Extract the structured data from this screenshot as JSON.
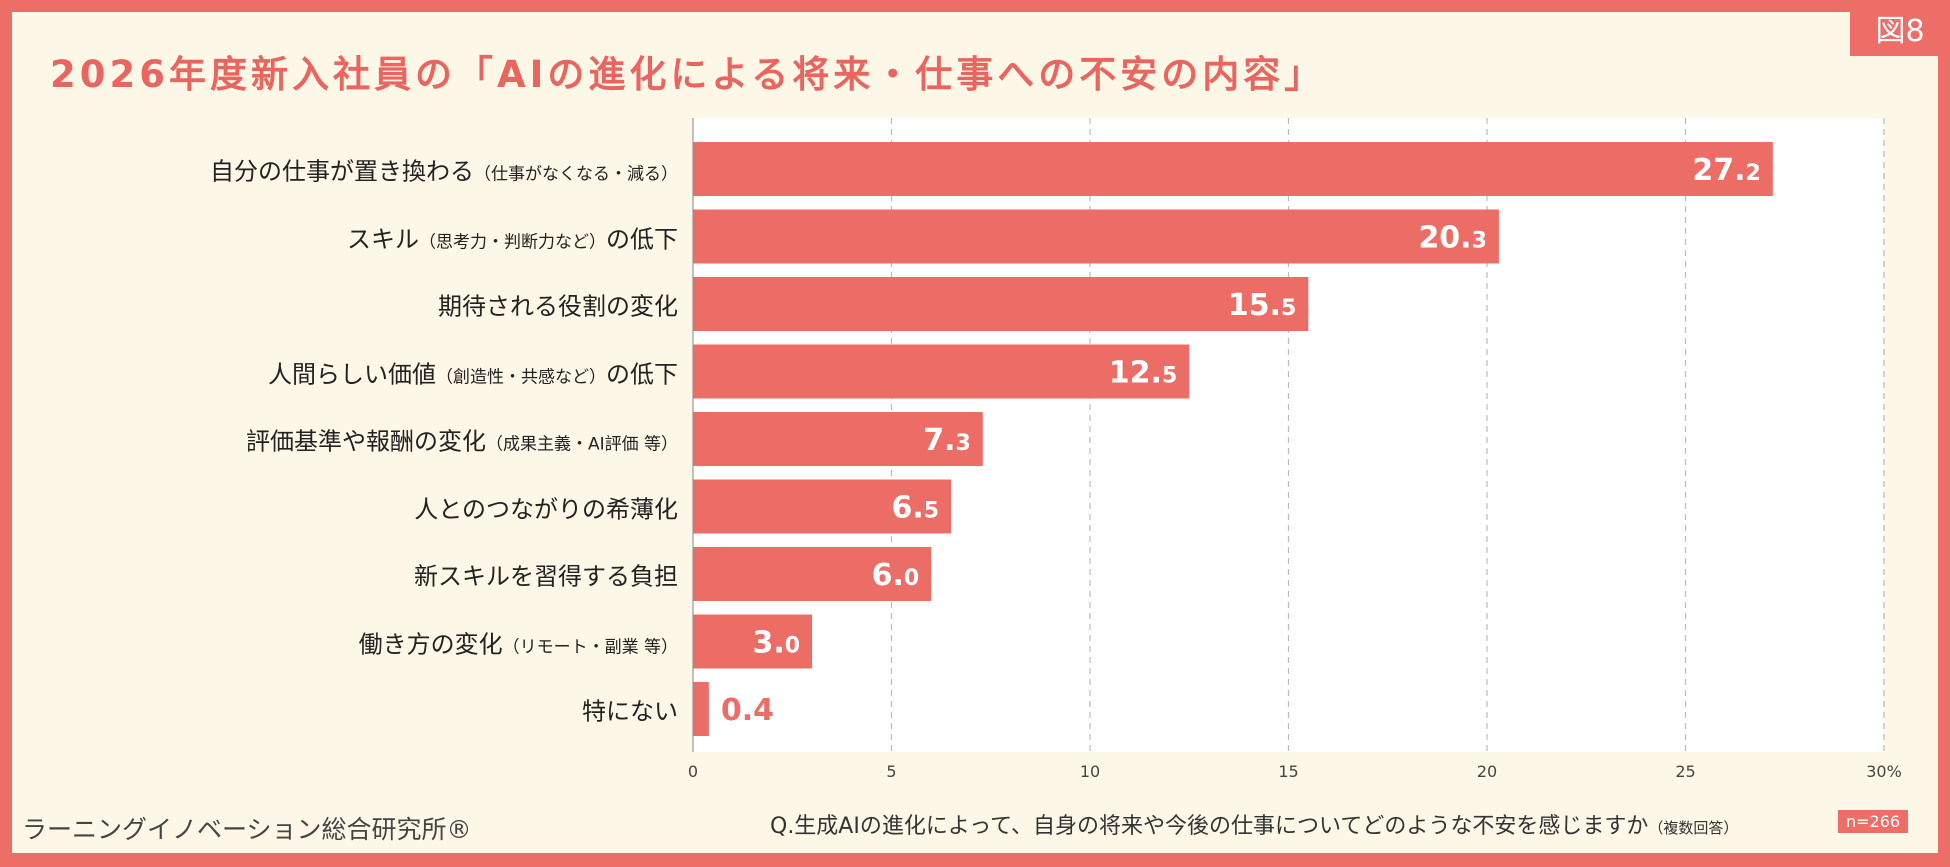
{
  "figure_badge": "図8",
  "title": "2026年度新入社員の「AIの進化による将来・仕事への不安の内容」",
  "source": "ラーニングイノベーション総合研究所®",
  "question": "Q.生成AIの進化によって、自身の将来や今後の仕事についてどのような不安を感じますか",
  "question_note": "（複数回答）",
  "sample_size": "n=266",
  "colors": {
    "bar": "#EC6D66",
    "background": "#FDF7E7",
    "frame": "#ED6E67"
  },
  "chart_data": {
    "type": "bar",
    "orientation": "horizontal",
    "categories": [
      {
        "main": "自分の仕事が置き換わる",
        "note": "（仕事がなくなる・減る）"
      },
      {
        "main": "スキル",
        "note": "（思考力・判断力など）",
        "tail": "の低下"
      },
      {
        "main": "期待される役割の変化",
        "note": ""
      },
      {
        "main": "人間らしい価値",
        "note": "（創造性・共感など）",
        "tail": "の低下"
      },
      {
        "main": "評価基準や報酬の変化",
        "note": "（成果主義・AI評価 等）"
      },
      {
        "main": "人とのつながりの希薄化",
        "note": ""
      },
      {
        "main": "新スキルを習得する負担",
        "note": ""
      },
      {
        "main": "働き方の変化",
        "note": "（リモート・副業 等）"
      },
      {
        "main": "特にない",
        "note": ""
      }
    ],
    "values": [
      27.2,
      20.3,
      15.5,
      12.5,
      7.3,
      6.5,
      6.0,
      3.0,
      0.4
    ],
    "xlim": [
      0,
      30
    ],
    "ticks": [
      "0",
      "5",
      "10",
      "15",
      "20",
      "25",
      "30"
    ],
    "unit": "%",
    "grid": "vertical dashed"
  }
}
